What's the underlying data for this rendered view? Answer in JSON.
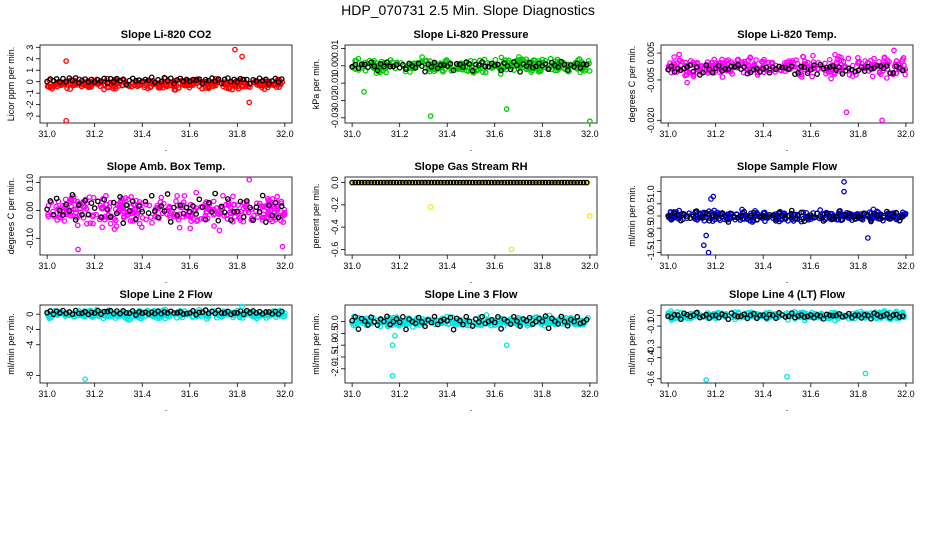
{
  "title": "HDP_070731  2.5 Min. Slope Diagnostics",
  "chart_data": [
    {
      "type": "scatter",
      "title": "Slope Li-820 CO2",
      "ylabel": "Licor ppm per min.",
      "xlim": [
        30.97,
        32.03
      ],
      "ylim": [
        -3.6,
        3.2
      ],
      "xticks": [
        "31.0",
        "31.2",
        "31.4",
        "31.6",
        "31.8",
        "32.0"
      ],
      "yticks": [
        "-3",
        "-2",
        "-1",
        "0",
        "1",
        "2",
        "3"
      ],
      "color": "#ff0000",
      "black_values": [
        0.0,
        0.2,
        0.1,
        0.3,
        -0.1,
        0.2,
        0.0,
        0.3,
        0.1,
        0.2,
        -0.2,
        0.1,
        0.3,
        0.0,
        0.2
      ],
      "colored_center": -0.2,
      "colored_spread": 0.6,
      "outliers": [
        [
          31.08,
          -3.4
        ],
        [
          31.08,
          1.8
        ],
        [
          31.79,
          2.8
        ],
        [
          31.82,
          2.2
        ],
        [
          31.85,
          -1.8
        ]
      ]
    },
    {
      "type": "scatter",
      "title": "Slope Li-820 Pressure",
      "ylabel": "kPa per min.",
      "xlim": [
        30.97,
        32.03
      ],
      "ylim": [
        -0.033,
        0.012
      ],
      "xticks": [
        "31.0",
        "31.2",
        "31.4",
        "31.6",
        "31.8",
        "32.0"
      ],
      "yticks": [
        "-0.03",
        "-0.02",
        "-0.01",
        "0.00",
        "0.01"
      ],
      "color": "#00cc00",
      "black_values": [
        0.0,
        0.001,
        -0.002,
        0.001,
        0.0,
        -0.001,
        0.002,
        0.0,
        -0.003,
        0.001,
        0.0,
        0.002,
        -0.001,
        0.0,
        0.001
      ],
      "colored_center": 0.0,
      "colored_spread": 0.006,
      "outliers": [
        [
          31.33,
          -0.029
        ],
        [
          31.65,
          -0.025
        ],
        [
          32.0,
          -0.032
        ],
        [
          31.05,
          -0.015
        ]
      ]
    },
    {
      "type": "scatter",
      "title": "Slope Li-820 Temp.",
      "ylabel": "degrees C per min.",
      "xlim": [
        30.97,
        32.03
      ],
      "ylim": [
        -0.021,
        0.008
      ],
      "xticks": [
        "31.0",
        "31.2",
        "31.4",
        "31.6",
        "31.8",
        "32.0"
      ],
      "yticks": [
        "-0.020",
        "-0.005",
        "0.005"
      ],
      "color": "#ff00ff",
      "black_values": [
        -0.001,
        0.0,
        -0.002,
        0.0,
        -0.001,
        0.0,
        0.0,
        0.0,
        -0.001,
        0.0,
        -0.003,
        -0.002,
        0.0,
        -0.001,
        -0.002
      ],
      "colored_center": 0.0,
      "colored_spread": 0.005,
      "outliers": [
        [
          31.75,
          -0.017
        ],
        [
          31.9,
          -0.02
        ],
        [
          31.08,
          -0.006
        ],
        [
          31.95,
          0.006
        ]
      ]
    },
    {
      "type": "scatter",
      "title": "Slope Amb. Box Temp.",
      "ylabel": "degrees C per min.",
      "xlim": [
        30.97,
        32.03
      ],
      "ylim": [
        -0.16,
        0.12
      ],
      "xticks": [
        "31.0",
        "31.2",
        "31.4",
        "31.6",
        "31.8",
        "32.0"
      ],
      "yticks": [
        "-0.10",
        "0.00",
        "0.10"
      ],
      "color": "#ff00ff",
      "black_values": [
        0.0,
        0.03,
        -0.02,
        0.04,
        0.01,
        -0.03,
        0.02,
        0.0,
        0.05,
        -0.04,
        0.02,
        -0.01,
        0.03,
        -0.02,
        0.01
      ],
      "colored_center": 0.0,
      "colored_spread": 0.08,
      "outliers": [
        [
          31.13,
          -0.14
        ],
        [
          31.99,
          -0.13
        ],
        [
          31.85,
          0.11
        ]
      ]
    },
    {
      "type": "scatter",
      "title": "Slope Gas Stream RH",
      "ylabel": "percent per min.",
      "xlim": [
        30.97,
        32.03
      ],
      "ylim": [
        -0.65,
        0.05
      ],
      "xticks": [
        "31.0",
        "31.2",
        "31.4",
        "31.6",
        "31.8",
        "32.0"
      ],
      "yticks": [
        "-0.6",
        "-0.4",
        "-0.2",
        "0.0"
      ],
      "color": "#ffe600",
      "black_values": [
        0.0,
        0.0,
        0.0,
        0.0,
        0.0,
        0.0,
        0.0,
        0.0,
        0.0,
        0.0,
        0.0,
        0.0,
        0.0,
        0.0,
        0.0
      ],
      "colored_center": 0.0,
      "colored_spread": 0.0,
      "outliers": [
        [
          31.33,
          -0.22
        ],
        [
          31.67,
          -0.6
        ],
        [
          32.0,
          -0.3
        ]
      ]
    },
    {
      "type": "scatter",
      "title": "Slope Sample Flow",
      "ylabel": "ml/min per min.",
      "xlim": [
        30.97,
        32.03
      ],
      "ylim": [
        -1.6,
        1.6
      ],
      "xticks": [
        "31.0",
        "31.2",
        "31.4",
        "31.6",
        "31.8",
        "32.0"
      ],
      "yticks": [
        "-1.5",
        "-1.0",
        "-0.5",
        "0.0",
        "0.5",
        "1.0"
      ],
      "color": "#0000dd",
      "black_values": [
        0.0,
        -0.1,
        0.1,
        0.0,
        -0.2,
        0.1,
        0.0,
        -0.1,
        0.0,
        0.2,
        -0.1,
        0.0,
        0.1,
        -0.2,
        0.0
      ],
      "colored_center": 0.0,
      "colored_spread": 0.3,
      "outliers": [
        [
          31.15,
          -1.2
        ],
        [
          31.17,
          -1.5
        ],
        [
          31.16,
          -0.8
        ],
        [
          31.18,
          0.7
        ],
        [
          31.19,
          0.8
        ],
        [
          31.74,
          1.4
        ],
        [
          31.74,
          1.0
        ],
        [
          31.84,
          -0.9
        ]
      ]
    },
    {
      "type": "scatter",
      "title": "Slope Line 2 Flow",
      "ylabel": "ml/min per min.",
      "xlim": [
        30.97,
        32.03
      ],
      "ylim": [
        -9,
        1.2
      ],
      "xticks": [
        "31.0",
        "31.2",
        "31.4",
        "31.6",
        "31.8",
        "32.0"
      ],
      "yticks": [
        "-8",
        "-4",
        "-2",
        "0"
      ],
      "color": "#00e5e5",
      "black_values": [
        0.2,
        0.4,
        0.0,
        0.3,
        0.2,
        0.5,
        0.1,
        0.3,
        0.0,
        0.4,
        0.2,
        0.1,
        0.3,
        0.0,
        0.2
      ],
      "colored_center": 0.0,
      "colored_spread": 0.8,
      "outliers": [
        [
          31.16,
          -8.5
        ],
        [
          31.82,
          1.0
        ]
      ]
    },
    {
      "type": "scatter",
      "title": "Slope Line 3 Flow",
      "ylabel": "ml/min per min.",
      "xlim": [
        30.97,
        32.03
      ],
      "ylim": [
        -2.6,
        0.7
      ],
      "xticks": [
        "31.0",
        "31.2",
        "31.4",
        "31.6",
        "31.8",
        "32.0"
      ],
      "yticks": [
        "-2.0",
        "-1.5",
        "-1.0",
        "-0.5",
        "0.0"
      ],
      "color": "#00e5e5",
      "black_values": [
        0.0,
        0.2,
        -0.3,
        0.1,
        0.0,
        -0.1,
        0.2,
        0.0,
        -0.2,
        0.1,
        0.0,
        0.2,
        -0.1,
        0.0,
        0.1
      ],
      "colored_center": 0.0,
      "colored_spread": 0.3,
      "outliers": [
        [
          31.17,
          -2.3
        ],
        [
          31.18,
          -0.6
        ],
        [
          31.17,
          -1.0
        ],
        [
          31.65,
          -1.0
        ]
      ]
    },
    {
      "type": "scatter",
      "title": "Slope Line 4 (LT) Flow",
      "ylabel": "ml/min per min.",
      "xlim": [
        30.97,
        32.03
      ],
      "ylim": [
        -0.64,
        0.1
      ],
      "xticks": [
        "31.0",
        "31.2",
        "31.4",
        "31.6",
        "31.8",
        "32.0"
      ],
      "yticks": [
        "-0.6",
        "-0.4",
        "-0.3",
        "-0.1",
        "0.0"
      ],
      "color": "#00e5e5",
      "black_values": [
        0.0,
        -0.02,
        0.01,
        0.0,
        -0.03,
        0.02,
        0.0,
        -0.01,
        0.0,
        0.02,
        -0.02,
        0.0,
        0.01,
        -0.02,
        0.0
      ],
      "colored_center": 0.0,
      "colored_spread": 0.05,
      "outliers": [
        [
          31.16,
          -0.61
        ],
        [
          31.5,
          -0.58
        ],
        [
          31.83,
          -0.55
        ]
      ]
    }
  ]
}
